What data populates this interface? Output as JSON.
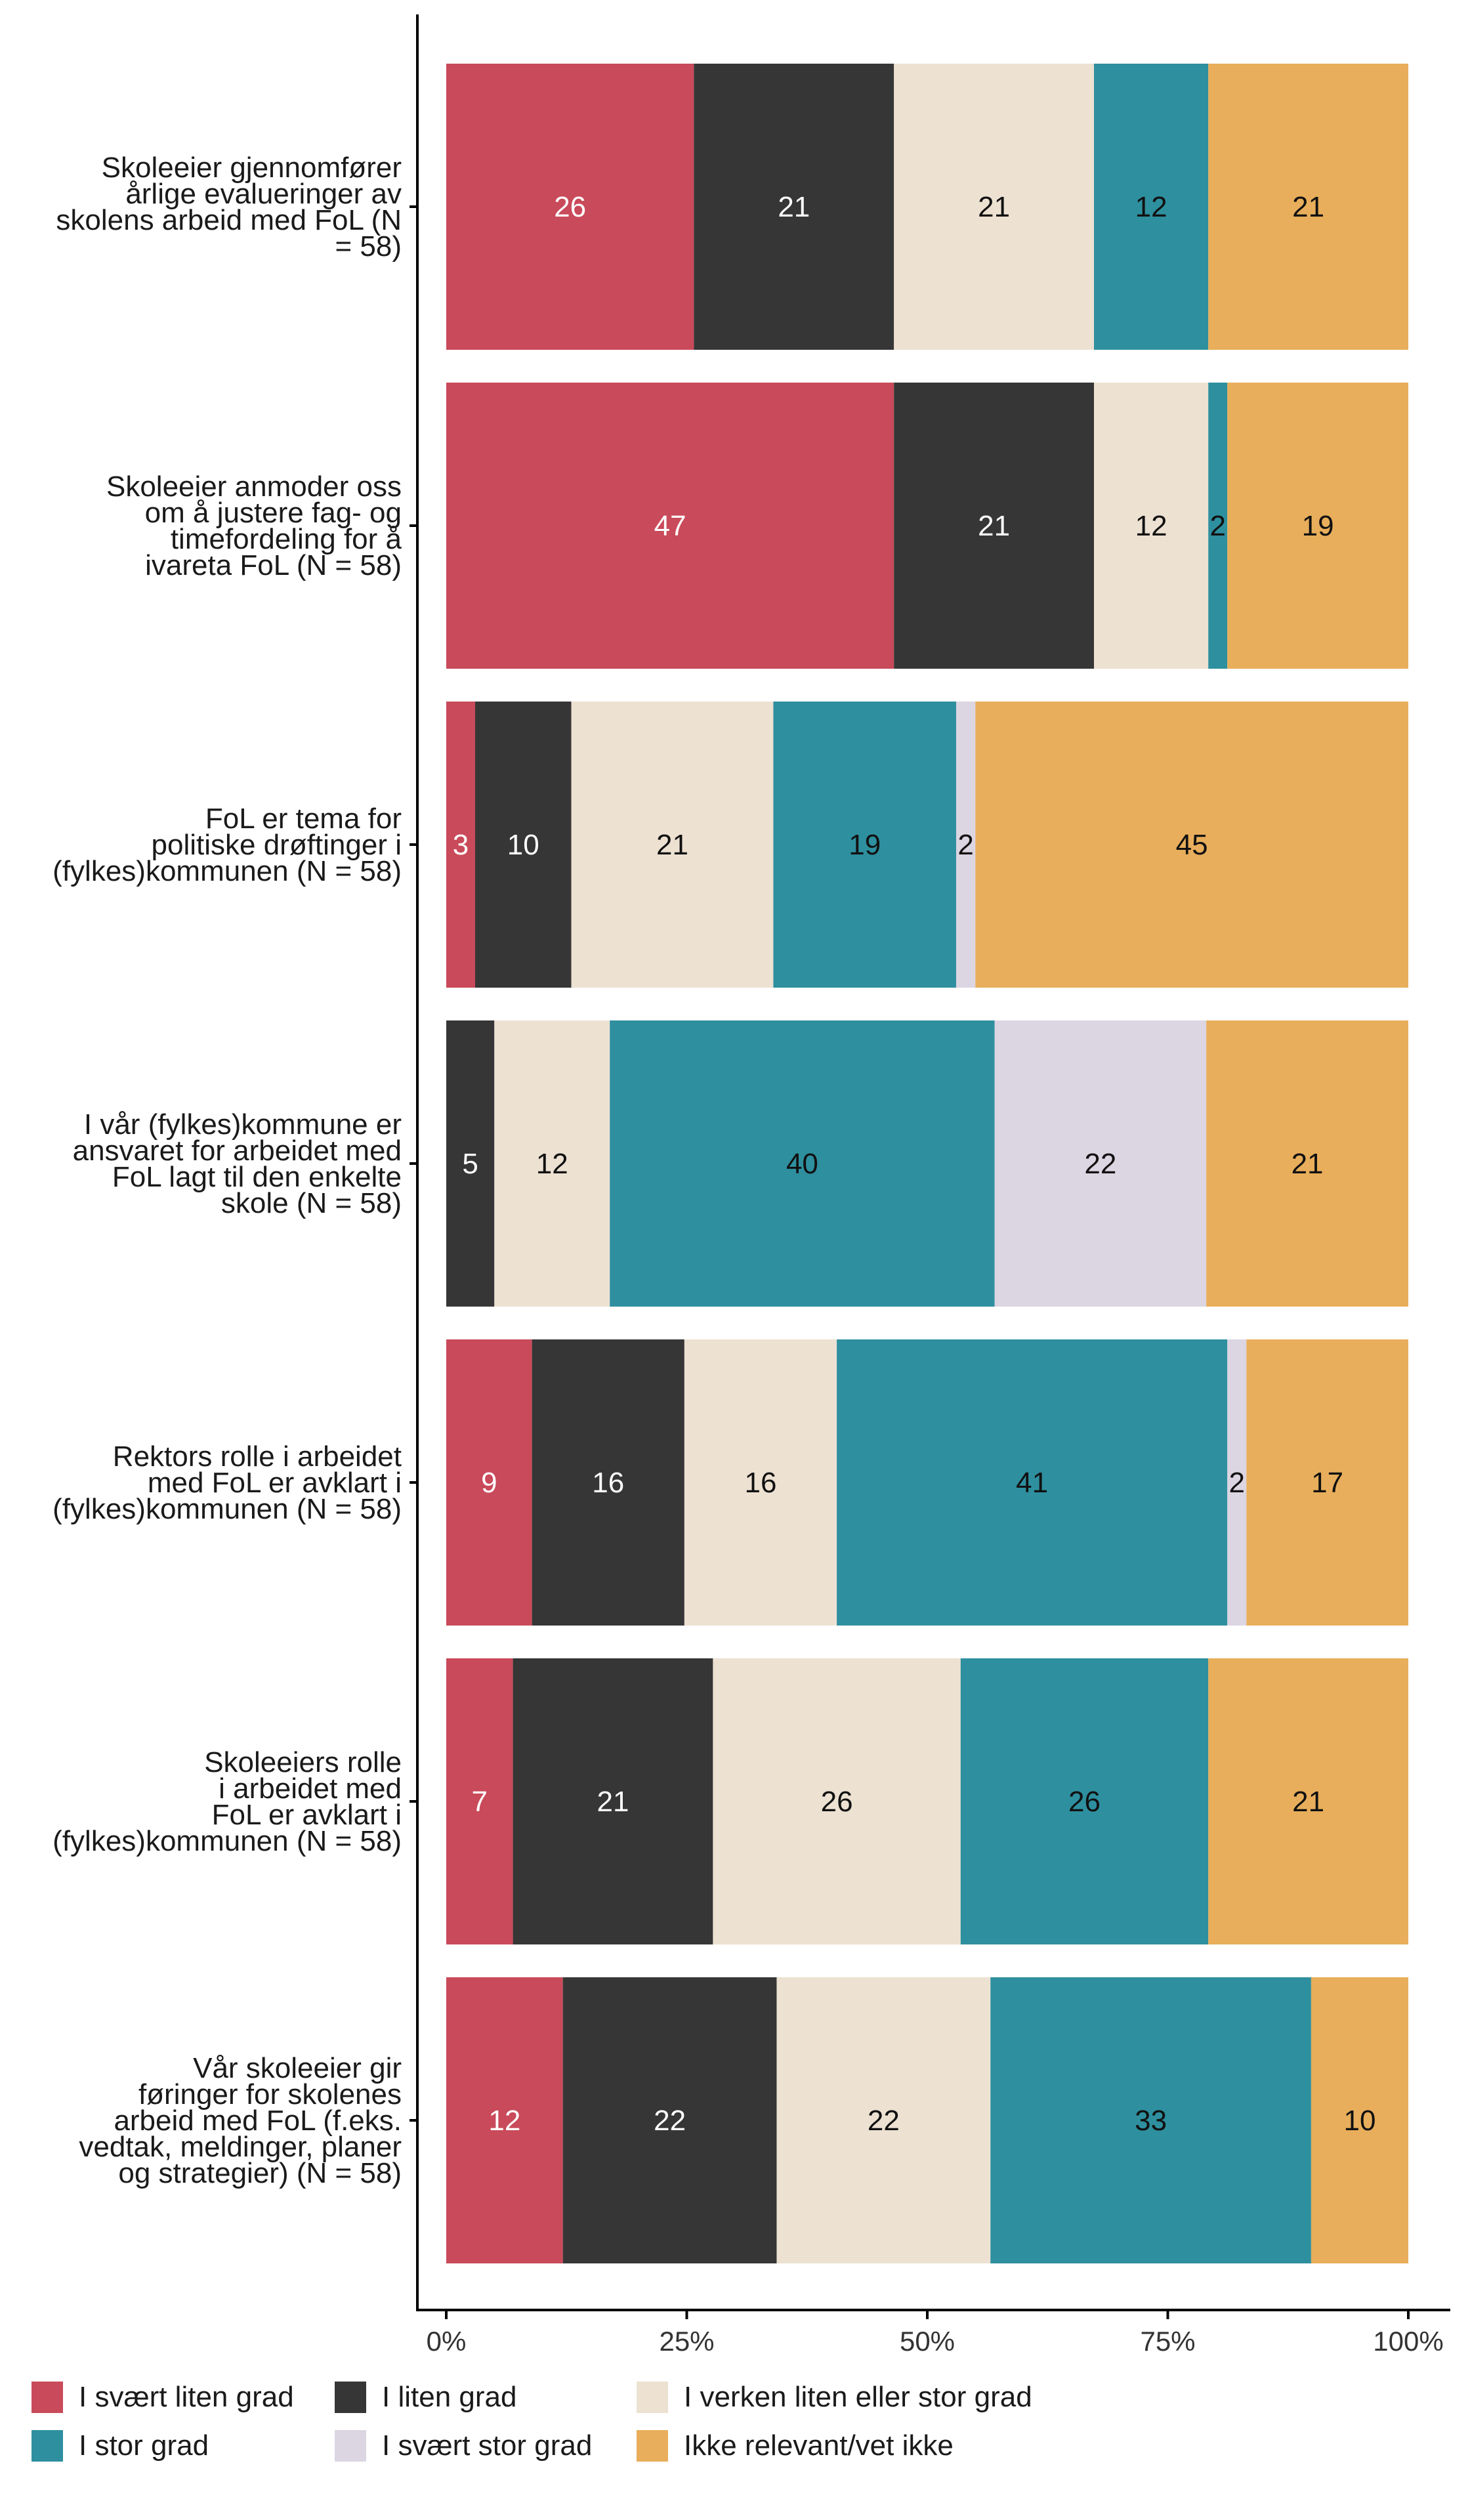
{
  "chart_data": {
    "type": "bar",
    "orientation": "horizontal",
    "stacked": true,
    "normalized": true,
    "categories": [
      [
        "Skoleeier gjennomfører",
        "årlige evalueringer av",
        "skolens arbeid med FoL (N",
        "= 58)"
      ],
      [
        "Skoleeier anmoder oss",
        "om å justere fag- og",
        "timefordeling for å",
        "ivareta FoL (N = 58)"
      ],
      [
        "FoL er tema for",
        "politiske drøftinger i",
        "(fylkes)kommunen (N = 58)"
      ],
      [
        "I vår (fylkes)kommune er",
        "ansvaret for arbeidet med",
        "FoL lagt til den enkelte",
        "skole (N = 58)"
      ],
      [
        "Rektors rolle i arbeidet",
        "med FoL er avklart i",
        "(fylkes)kommunen (N = 58)"
      ],
      [
        "Skoleeiers rolle",
        "i arbeidet med",
        "FoL er avklart i",
        "(fylkes)kommunen (N = 58)"
      ],
      [
        "Vår skoleeier gir",
        "føringer for skolenes",
        "arbeid med FoL (f.eks.",
        "vedtak, meldinger, planer",
        "og strategier) (N = 58)"
      ]
    ],
    "series": [
      {
        "name": "I svært liten grad",
        "color": "#c94a5a",
        "label_color": "#ffffff",
        "values": [
          26,
          47,
          3,
          0,
          9,
          7,
          12
        ]
      },
      {
        "name": "I liten grad",
        "color": "#363636",
        "label_color": "#ffffff",
        "values": [
          21,
          21,
          10,
          5,
          16,
          21,
          22
        ]
      },
      {
        "name": "I verken liten eller stor grad",
        "color": "#ede1d2",
        "label_color": "#111111",
        "values": [
          21,
          12,
          21,
          12,
          16,
          26,
          22
        ]
      },
      {
        "name": "I stor grad",
        "color": "#2e8f9f",
        "label_color": "#111111",
        "values": [
          12,
          2,
          19,
          40,
          41,
          26,
          33
        ]
      },
      {
        "name": "I svært stor grad",
        "color": "#dcd5e2",
        "label_color": "#111111",
        "values": [
          0,
          0,
          2,
          22,
          2,
          0,
          0
        ]
      },
      {
        "name": "Ikke relevant/vet ikke",
        "color": "#e8ae5b",
        "label_color": "#111111",
        "values": [
          21,
          19,
          45,
          21,
          17,
          21,
          10
        ]
      }
    ],
    "xlim": [
      0,
      100
    ],
    "xticks": [
      "0%",
      "25%",
      "50%",
      "75%",
      "100%"
    ],
    "legend_position": "bottom",
    "legend_order": [
      0,
      1,
      2,
      3,
      4,
      5
    ],
    "grid": false
  }
}
